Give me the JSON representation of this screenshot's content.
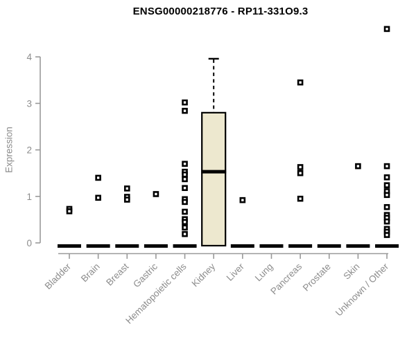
{
  "chart_data": {
    "type": "boxplot",
    "title": "ENSG00000218776 - RP11-331O9.3",
    "ylabel": "Expression",
    "ylim": [
      0,
      4
    ],
    "yticks": [
      0,
      1,
      2,
      3,
      4
    ],
    "grid": false,
    "legend": false,
    "categories": [
      "Bladder",
      "Brain",
      "Breast",
      "Gastric",
      "Hematopoietic cells",
      "Kidney",
      "Liver",
      "Lung",
      "Pancreas",
      "Prostate",
      "Skin",
      "Unknown / Other"
    ],
    "groups": [
      {
        "name": "Bladder",
        "zero_bar": true,
        "points": [
          0.73,
          0.68
        ]
      },
      {
        "name": "Brain",
        "zero_bar": true,
        "points": [
          1.4,
          0.97
        ]
      },
      {
        "name": "Breast",
        "zero_bar": true,
        "points": [
          1.17,
          0.99,
          0.93
        ]
      },
      {
        "name": "Gastric",
        "zero_bar": true,
        "points": [
          1.05
        ]
      },
      {
        "name": "Hematopoietic cells",
        "zero_bar": true,
        "points": [
          3.02,
          2.84,
          1.7,
          1.53,
          1.47,
          1.37,
          1.18,
          0.94,
          0.88,
          0.67,
          0.51,
          0.45,
          0.33,
          0.19
        ]
      },
      {
        "name": "Kidney",
        "zero_bar": false,
        "box": {
          "lower": 0,
          "q1": 0,
          "median": 1.53,
          "q3": 2.8,
          "upper": 3.96
        },
        "points": []
      },
      {
        "name": "Liver",
        "zero_bar": true,
        "points": [
          0.92
        ]
      },
      {
        "name": "Lung",
        "zero_bar": true,
        "points": []
      },
      {
        "name": "Pancreas",
        "zero_bar": true,
        "points": [
          3.45,
          1.63,
          1.5,
          0.95
        ]
      },
      {
        "name": "Prostate",
        "zero_bar": true,
        "points": []
      },
      {
        "name": "Skin",
        "zero_bar": true,
        "points": [
          1.65
        ]
      },
      {
        "name": "Unknown / Other",
        "zero_bar": true,
        "points": [
          4.6,
          1.65,
          1.41,
          1.24,
          1.11,
          1.03,
          0.77,
          0.6,
          0.54,
          0.46,
          0.3,
          0.24,
          0.17
        ]
      }
    ],
    "colors": {
      "title": "#000000",
      "axis_line": "#999999",
      "axis_text": "#8c8c8c",
      "box_fill": "#ede8cf",
      "box_border": "#000000",
      "point": "#000000",
      "zero_bar": "#000000",
      "background": "#ffffff"
    }
  }
}
